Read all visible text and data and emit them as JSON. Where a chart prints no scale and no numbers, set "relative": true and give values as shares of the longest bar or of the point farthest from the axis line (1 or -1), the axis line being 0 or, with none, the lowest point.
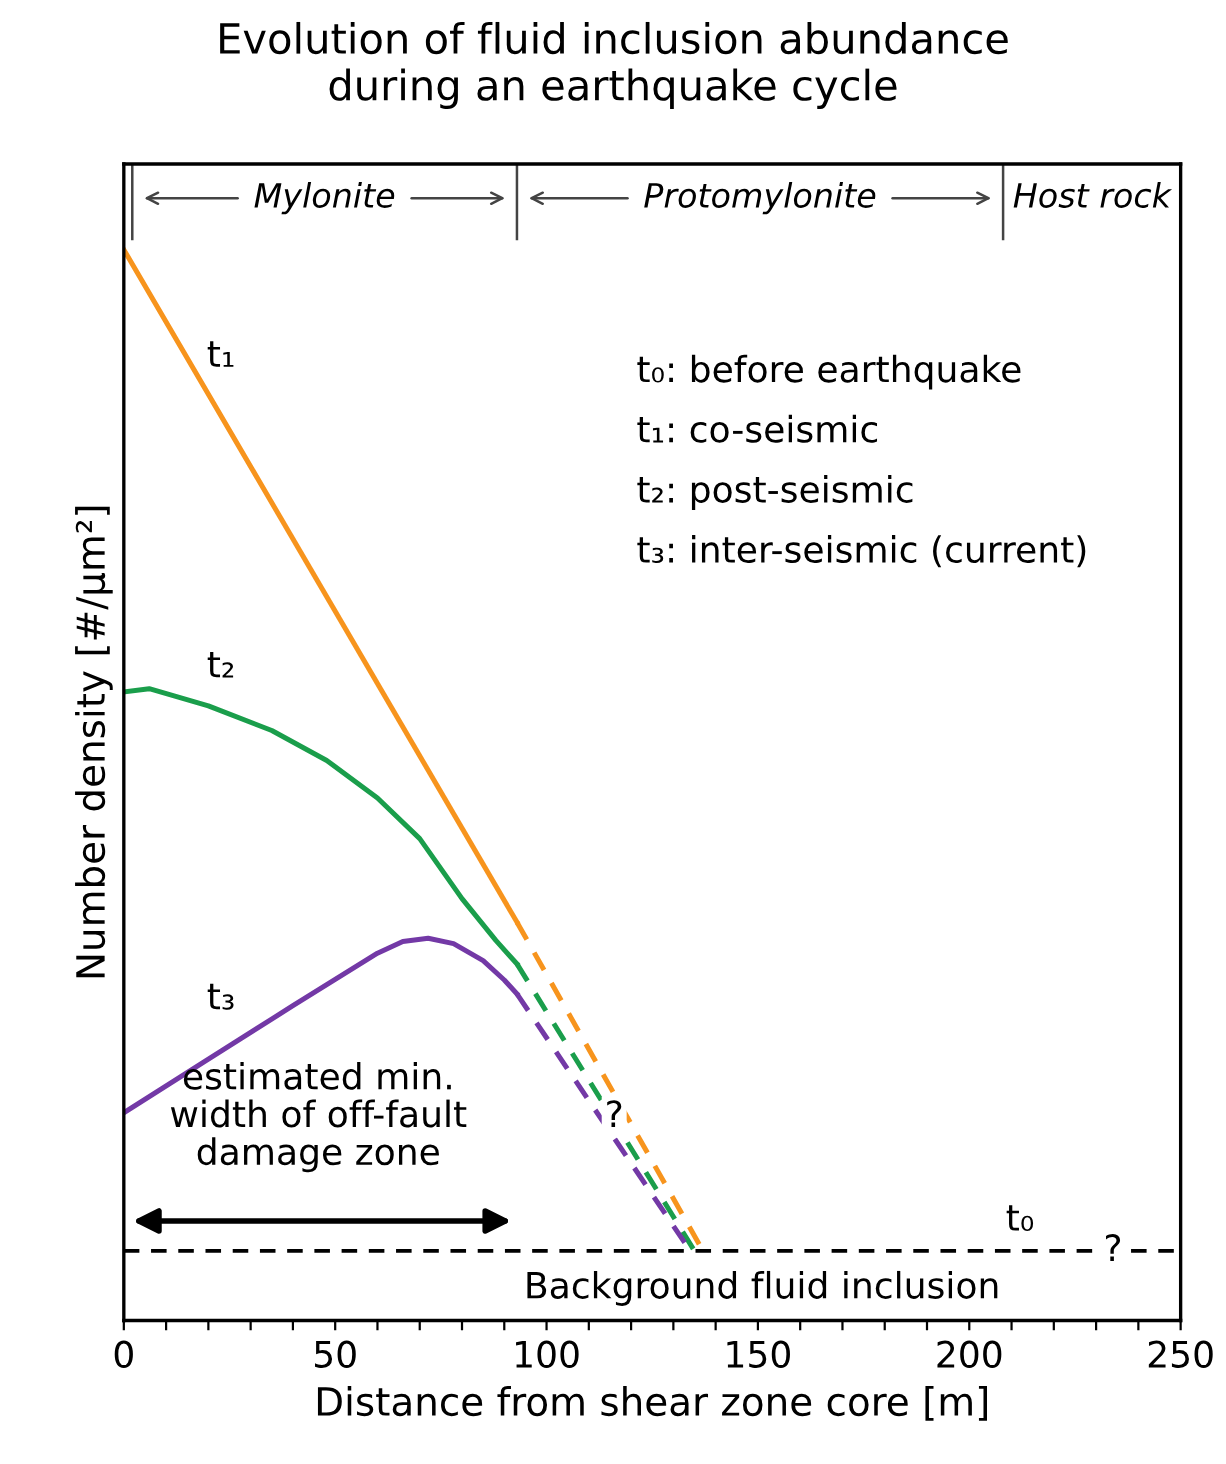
{
  "chart_data": {
    "type": "line",
    "title": "Evolution of fluid inclusion abundance\nduring an earthquake cycle",
    "xlabel": "Distance from shear zone core [m]",
    "ylabel": "Number density [#/µm²]",
    "relative": true,
    "tick_labels": "x",
    "grid": false,
    "marker": "none",
    "xlim": [
      0,
      250
    ],
    "xticks": [
      0,
      {
        "value": 10,
        "label": null
      },
      {
        "value": 20,
        "label": null
      },
      {
        "value": 30,
        "label": null
      },
      {
        "value": 40,
        "label": null
      },
      50,
      {
        "value": 60,
        "label": null
      },
      {
        "value": 70,
        "label": null
      },
      {
        "value": 80,
        "label": null
      },
      {
        "value": 90,
        "label": null
      },
      100,
      {
        "value": 110,
        "label": null
      },
      {
        "value": 120,
        "label": null
      },
      {
        "value": 130,
        "label": null
      },
      {
        "value": 140,
        "label": null
      },
      150,
      {
        "value": 160,
        "label": null
      },
      {
        "value": 170,
        "label": null
      },
      {
        "value": 180,
        "label": null
      },
      {
        "value": 190,
        "label": null
      },
      200,
      {
        "value": 210,
        "label": null
      },
      {
        "value": 220,
        "label": null
      },
      {
        "value": 230,
        "label": null
      },
      {
        "value": 240,
        "label": null
      },
      250
    ],
    "series": [
      {
        "color": "#f7941d",
        "line_style": "solid",
        "x": [
          0,
          93
        ],
        "values": [
          1,
          0.372
        ]
      },
      {
        "color": "#1a9e4b",
        "line_style": "solid",
        "x": [
          0,
          6,
          20,
          35,
          48,
          60,
          70,
          80,
          88,
          93
        ],
        "values": [
          0.587,
          0.59,
          0.574,
          0.551,
          0.523,
          0.488,
          0.45,
          0.394,
          0.355,
          0.333
        ]
      },
      {
        "color": "#7339a6",
        "line_style": "solid",
        "x": [
          0,
          20,
          40,
          60,
          66,
          72,
          78,
          85,
          90,
          93
        ],
        "values": [
          0.194,
          0.244,
          0.294,
          0.343,
          0.354,
          0.357,
          0.352,
          0.336,
          0.318,
          0.305
        ]
      },
      {
        "color": "#f7941d",
        "line_style": "dashed",
        "x": [
          93,
          137
        ],
        "values": [
          0.372,
          0.065
        ]
      },
      {
        "color": "#1a9e4b",
        "line_style": "dashed",
        "x": [
          93,
          135
        ],
        "values": [
          0.333,
          0.065
        ]
      },
      {
        "color": "#7339a6",
        "line_style": "dashed",
        "x": [
          93,
          134
        ],
        "values": [
          0.305,
          0.065
        ]
      }
    ],
    "ref_lines": [
      {
        "axis": "y",
        "value": 0.065,
        "color": "#000000",
        "line_style": "dashed",
        "label": "t₀"
      }
    ],
    "annotations": [
      "Mylonite",
      "Protomylonite",
      "Host rock",
      "t₁",
      "t₂",
      "t₃",
      "?",
      "?",
      "Background fluid inclusion",
      "estimated min.\nwidth of off-fault\ndamage zone",
      "t₀: before earthquake",
      "t₁: co-seismic",
      "t₂: post-seismic",
      "t₃: inter-seismic (current)"
    ]
  }
}
